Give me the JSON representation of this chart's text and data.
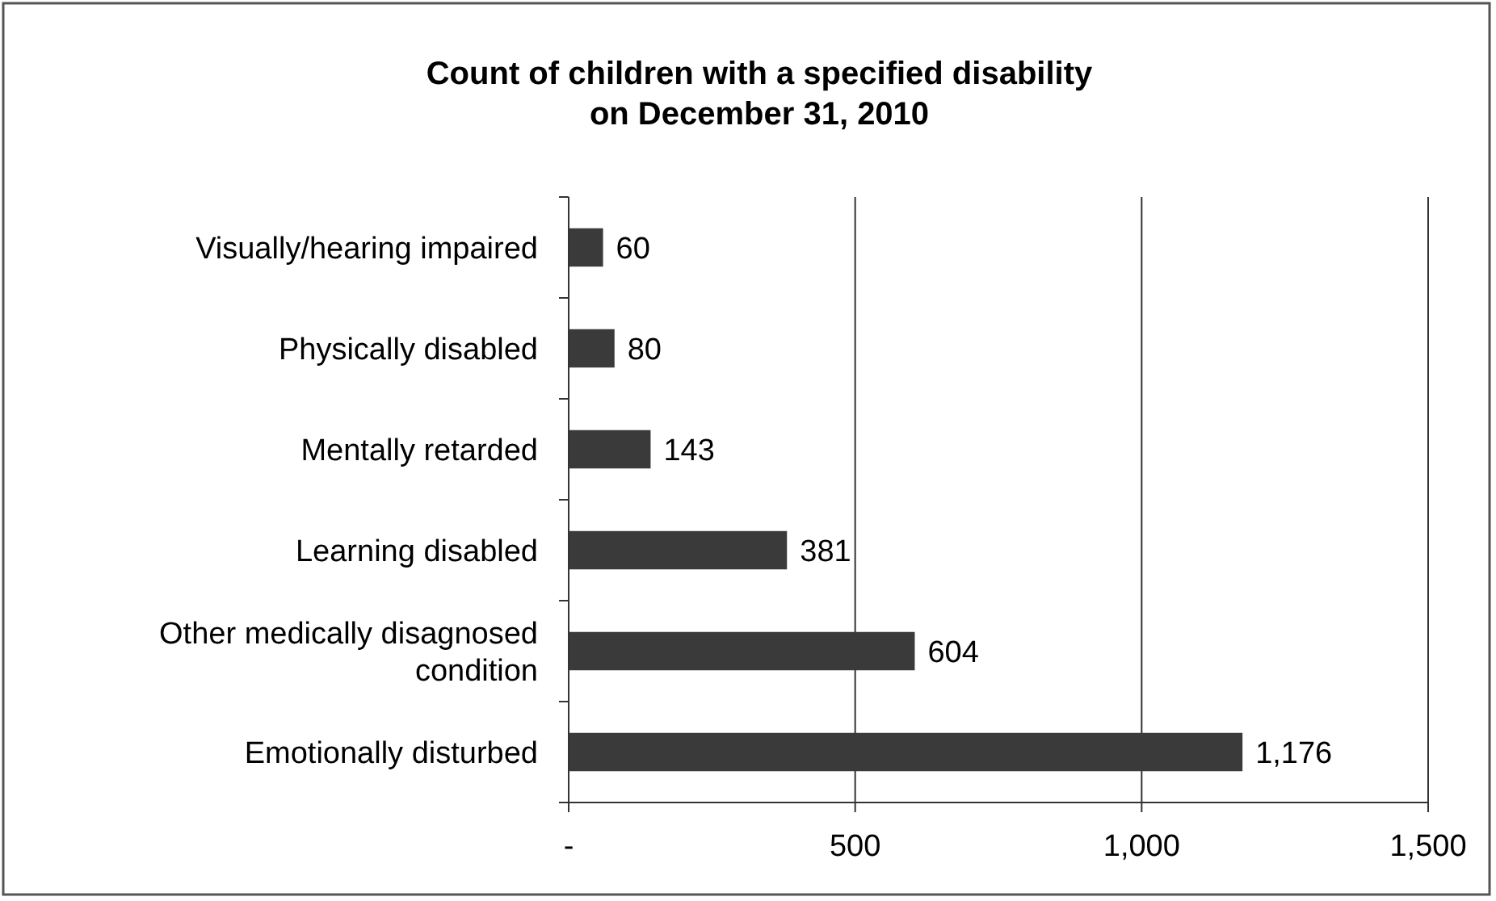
{
  "chart_data": {
    "type": "bar",
    "orientation": "horizontal",
    "title": "Count of children with a specified disability\non December 31, 2010",
    "categories": [
      "Visually/hearing impaired",
      "Physically disabled",
      "Mentally retarded",
      "Learning disabled",
      "Other medically disagnosed condition",
      "Emotionally disturbed"
    ],
    "values": [
      60,
      80,
      143,
      381,
      604,
      1176
    ],
    "value_labels": [
      "60",
      "80",
      "143",
      "381",
      "604",
      "1,176"
    ],
    "color": "#3a3a3a",
    "xlim": [
      0,
      1500
    ],
    "xticks": [
      {
        "value": 0,
        "label": "-"
      },
      {
        "value": 500,
        "label": "500"
      },
      {
        "value": 1000,
        "label": "1,000"
      },
      {
        "value": 1500,
        "label": "1,500"
      }
    ],
    "grid": "x"
  }
}
